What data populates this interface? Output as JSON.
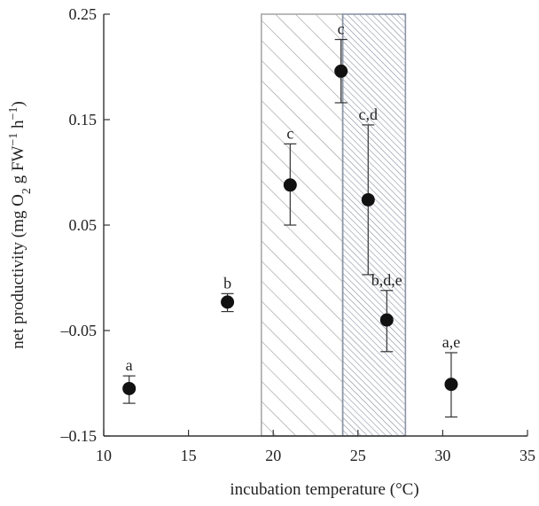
{
  "chart_data": {
    "type": "scatter",
    "title": "",
    "xlabel": "incubation temperature (°C)",
    "ylabel": "net productivity (mg O2 g FW−1 h−1)",
    "ylabel_parts": {
      "prefix": "net productivity (mg O",
      "o2_sub": "2",
      "mid": " g FW",
      "sup1": "−1",
      "h": " h",
      "sup2": "−1",
      "close": ")"
    },
    "xlim": [
      10,
      35
    ],
    "ylim": [
      -0.15,
      0.25
    ],
    "xticks": [
      10,
      15,
      20,
      25,
      30,
      35
    ],
    "xtick_labels": [
      "10",
      "15",
      "20",
      "25",
      "30",
      "35"
    ],
    "yticks": [
      -0.15,
      -0.05,
      0.05,
      0.15,
      0.25
    ],
    "ytick_labels": [
      "–0.15",
      "–0.05",
      "0.05",
      "0.15",
      "0.25"
    ],
    "grid": false,
    "points": [
      {
        "x": 11.5,
        "y": -0.105,
        "err_low": -0.119,
        "err_high": -0.093,
        "label": "a"
      },
      {
        "x": 17.3,
        "y": -0.023,
        "err_low": -0.032,
        "err_high": -0.015,
        "label": "b"
      },
      {
        "x": 21.0,
        "y": 0.088,
        "err_low": 0.05,
        "err_high": 0.127,
        "label": "c"
      },
      {
        "x": 24.0,
        "y": 0.196,
        "err_low": 0.166,
        "err_high": 0.226,
        "label": "c"
      },
      {
        "x": 25.6,
        "y": 0.074,
        "err_low": 0.003,
        "err_high": 0.145,
        "label": "c,d"
      },
      {
        "x": 26.7,
        "y": -0.04,
        "err_low": -0.07,
        "err_high": -0.012,
        "label": "b,d,e"
      },
      {
        "x": 30.5,
        "y": -0.101,
        "err_low": -0.132,
        "err_high": -0.071,
        "label": "a,e"
      }
    ],
    "shaded_regions": [
      {
        "x_start": 19.3,
        "x_end": 24.1,
        "pattern": "light-diagonal-hatch",
        "color": "#a9a9a9"
      },
      {
        "x_start": 24.1,
        "x_end": 27.8,
        "pattern": "dense-diagonal-hatch",
        "color": "#8c95a8"
      }
    ]
  }
}
